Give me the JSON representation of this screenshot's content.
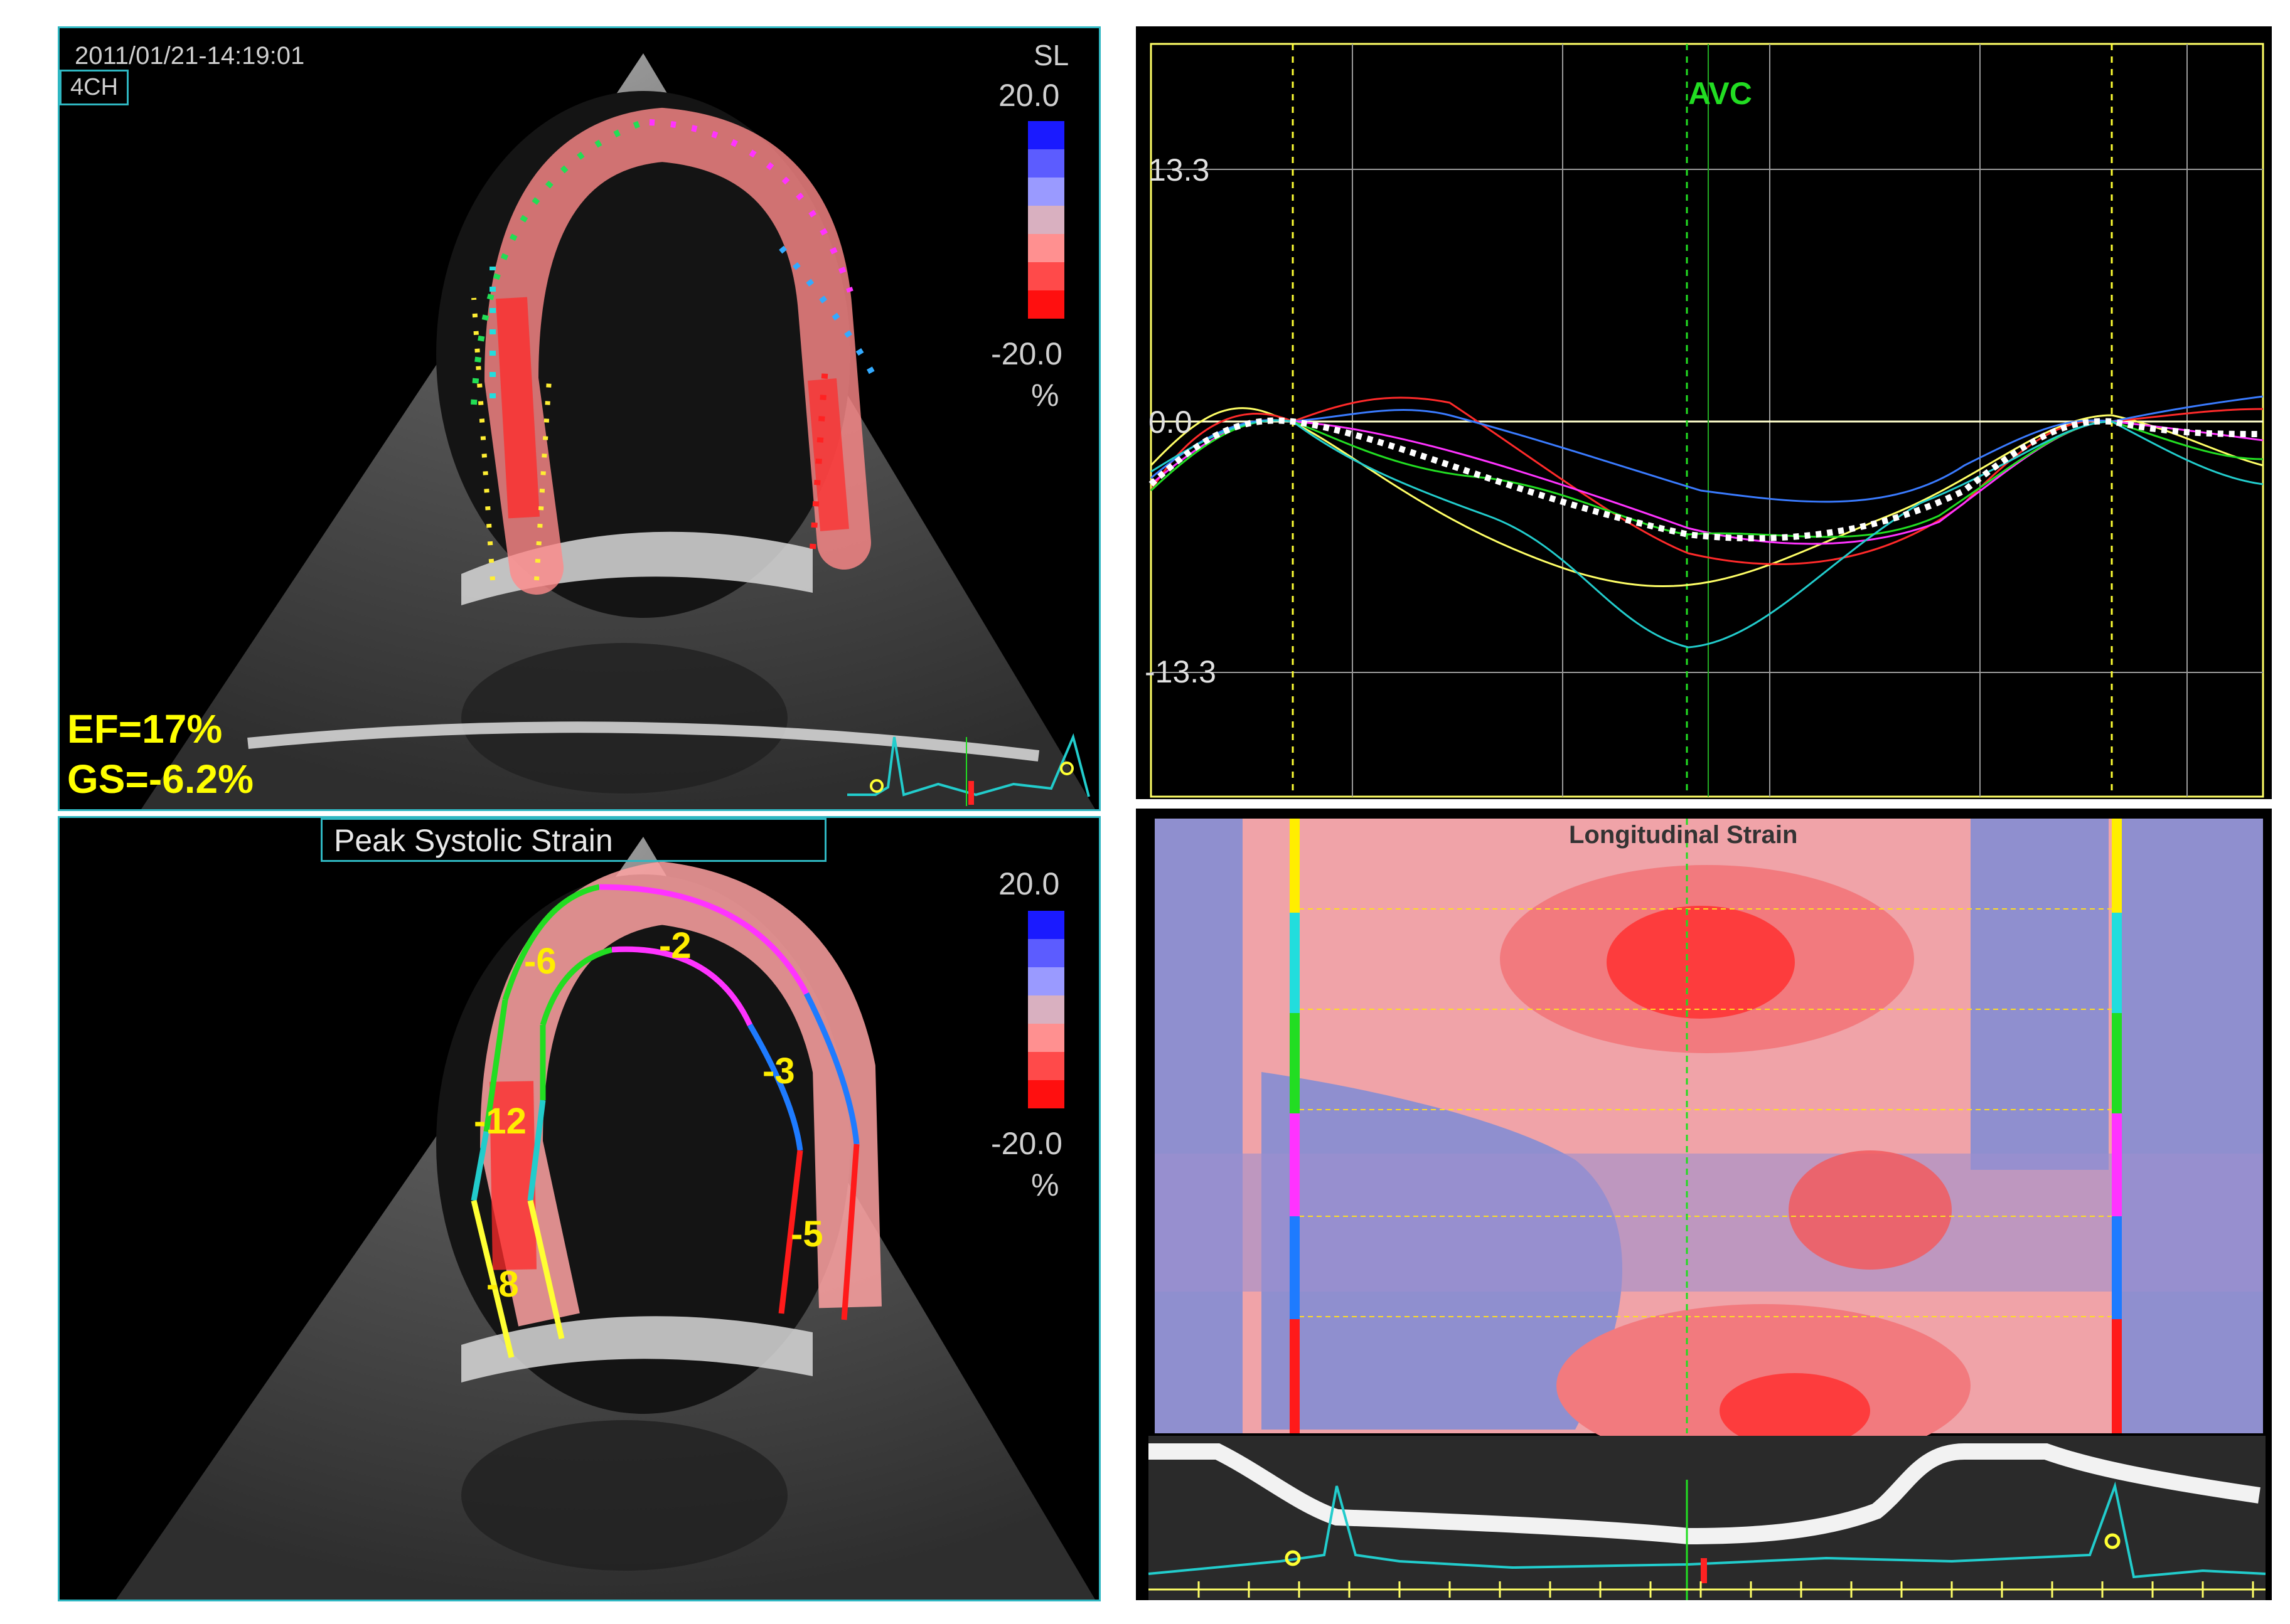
{
  "echo_top": {
    "timestamp": "2011/01/21-14:19:01",
    "view_label": "4CH",
    "mode_label": "SL",
    "scale_max": "20.0",
    "scale_min": "-20.0",
    "scale_unit": "%",
    "ef_text": "EF=17%",
    "gs_text": "GS=-6.2%"
  },
  "echo_bottom": {
    "title": "Peak Systolic Strain",
    "scale_max": "20.0",
    "scale_min": "-20.0",
    "scale_unit": "%",
    "segment_values": [
      "-6",
      "-2",
      "-3",
      "-12",
      "-5",
      "-8"
    ]
  },
  "strain_curves": {
    "event_label": "AVC",
    "y_top_label": "13.3",
    "y_zero_label": "0.0",
    "y_bottom_label": "-13.3",
    "colors": {
      "yellow": "#ffff66",
      "red": "#ff2020",
      "blue": "#3a7bff",
      "magenta": "#ff33ff",
      "green": "#22dd22",
      "cyan": "#22cccc",
      "average": "#ffffff"
    }
  },
  "strain_map": {
    "title": "Longitudinal Strain"
  },
  "colors": {
    "panel_border": "#2fb7c2",
    "text_yellow": "#ffff00",
    "avc_green": "#22dd22"
  }
}
